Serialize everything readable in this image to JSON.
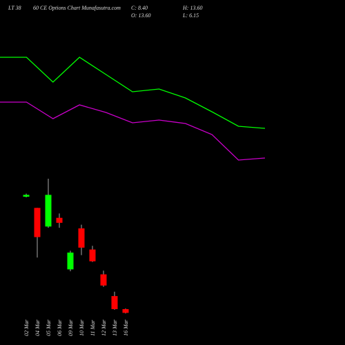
{
  "chart_data": [
    {
      "type": "line",
      "ylim": [
        0,
        95
      ],
      "x": [
        0,
        1,
        2,
        3,
        4,
        5,
        6,
        7,
        8,
        9,
        10
      ],
      "xlim": [
        0,
        10
      ],
      "series": [
        {
          "color": "#00ff00",
          "values": [
            83.5,
            83.5,
            65.5,
            83.5,
            71,
            58.5,
            60.5,
            54,
            44,
            33.5,
            32
          ]
        },
        {
          "color": "#cc00cc",
          "values": [
            51,
            51,
            39,
            49,
            43.5,
            36,
            38,
            35.5,
            27.5,
            9,
            10.5
          ]
        }
      ]
    },
    {
      "type": "candlestick",
      "title": "LT 38",
      "subtitle": "60 CE Options Chart Munafasutra.com",
      "annotations": [
        "C: 8.40",
        "H: 13.60",
        "O: 13.60",
        "L: 6.15"
      ],
      "up_color": "#00ff00",
      "down_color": "#ff0000",
      "ylim": [
        0,
        25
      ],
      "categories": [
        "02 Mar",
        "04 Mar",
        "05 Mar",
        "06 Mar",
        "09 Mar",
        "10 Mar",
        "11 Mar",
        "12 Mar",
        "13 Mar",
        "16 Mar"
      ],
      "open": [
        21.1,
        19.3,
        16.3,
        17.7,
        9.4,
        16.0,
        12.6,
        8.6,
        5.1,
        3.0
      ],
      "high": [
        21.6,
        19.3,
        24.0,
        18.4,
        12.4,
        16.6,
        13.2,
        9.2,
        5.8,
        3.1
      ],
      "low": [
        21.0,
        11.3,
        16.1,
        16.1,
        9.1,
        11.7,
        10.6,
        6.6,
        2.9,
        2.3
      ],
      "close": [
        21.4,
        14.6,
        21.4,
        16.9,
        12.1,
        12.9,
        10.7,
        6.8,
        3.0,
        2.4
      ]
    }
  ]
}
